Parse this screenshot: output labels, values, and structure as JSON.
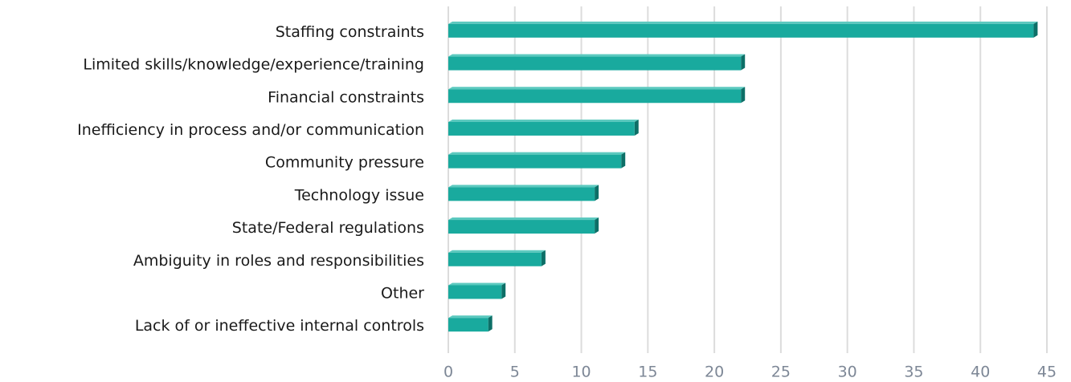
{
  "chart_data": {
    "type": "bar",
    "orientation": "horizontal",
    "categories": [
      "Staffing constraints",
      "Limited skills/knowledge/experience/training",
      "Financial constraints",
      "Inefficiency in process and/or communication",
      "Community pressure",
      "Technology issue",
      "State/Federal regulations",
      "Ambiguity in roles and responsibilities",
      "Other",
      "Lack of or ineffective internal controls"
    ],
    "values": [
      44,
      22,
      22,
      14,
      13,
      11,
      11,
      7,
      4,
      3
    ],
    "color": "#19aa9e",
    "xlim": [
      0,
      45
    ],
    "xticks": [
      0,
      5,
      10,
      15,
      20,
      25,
      30,
      35,
      40,
      45
    ],
    "grid": true
  }
}
